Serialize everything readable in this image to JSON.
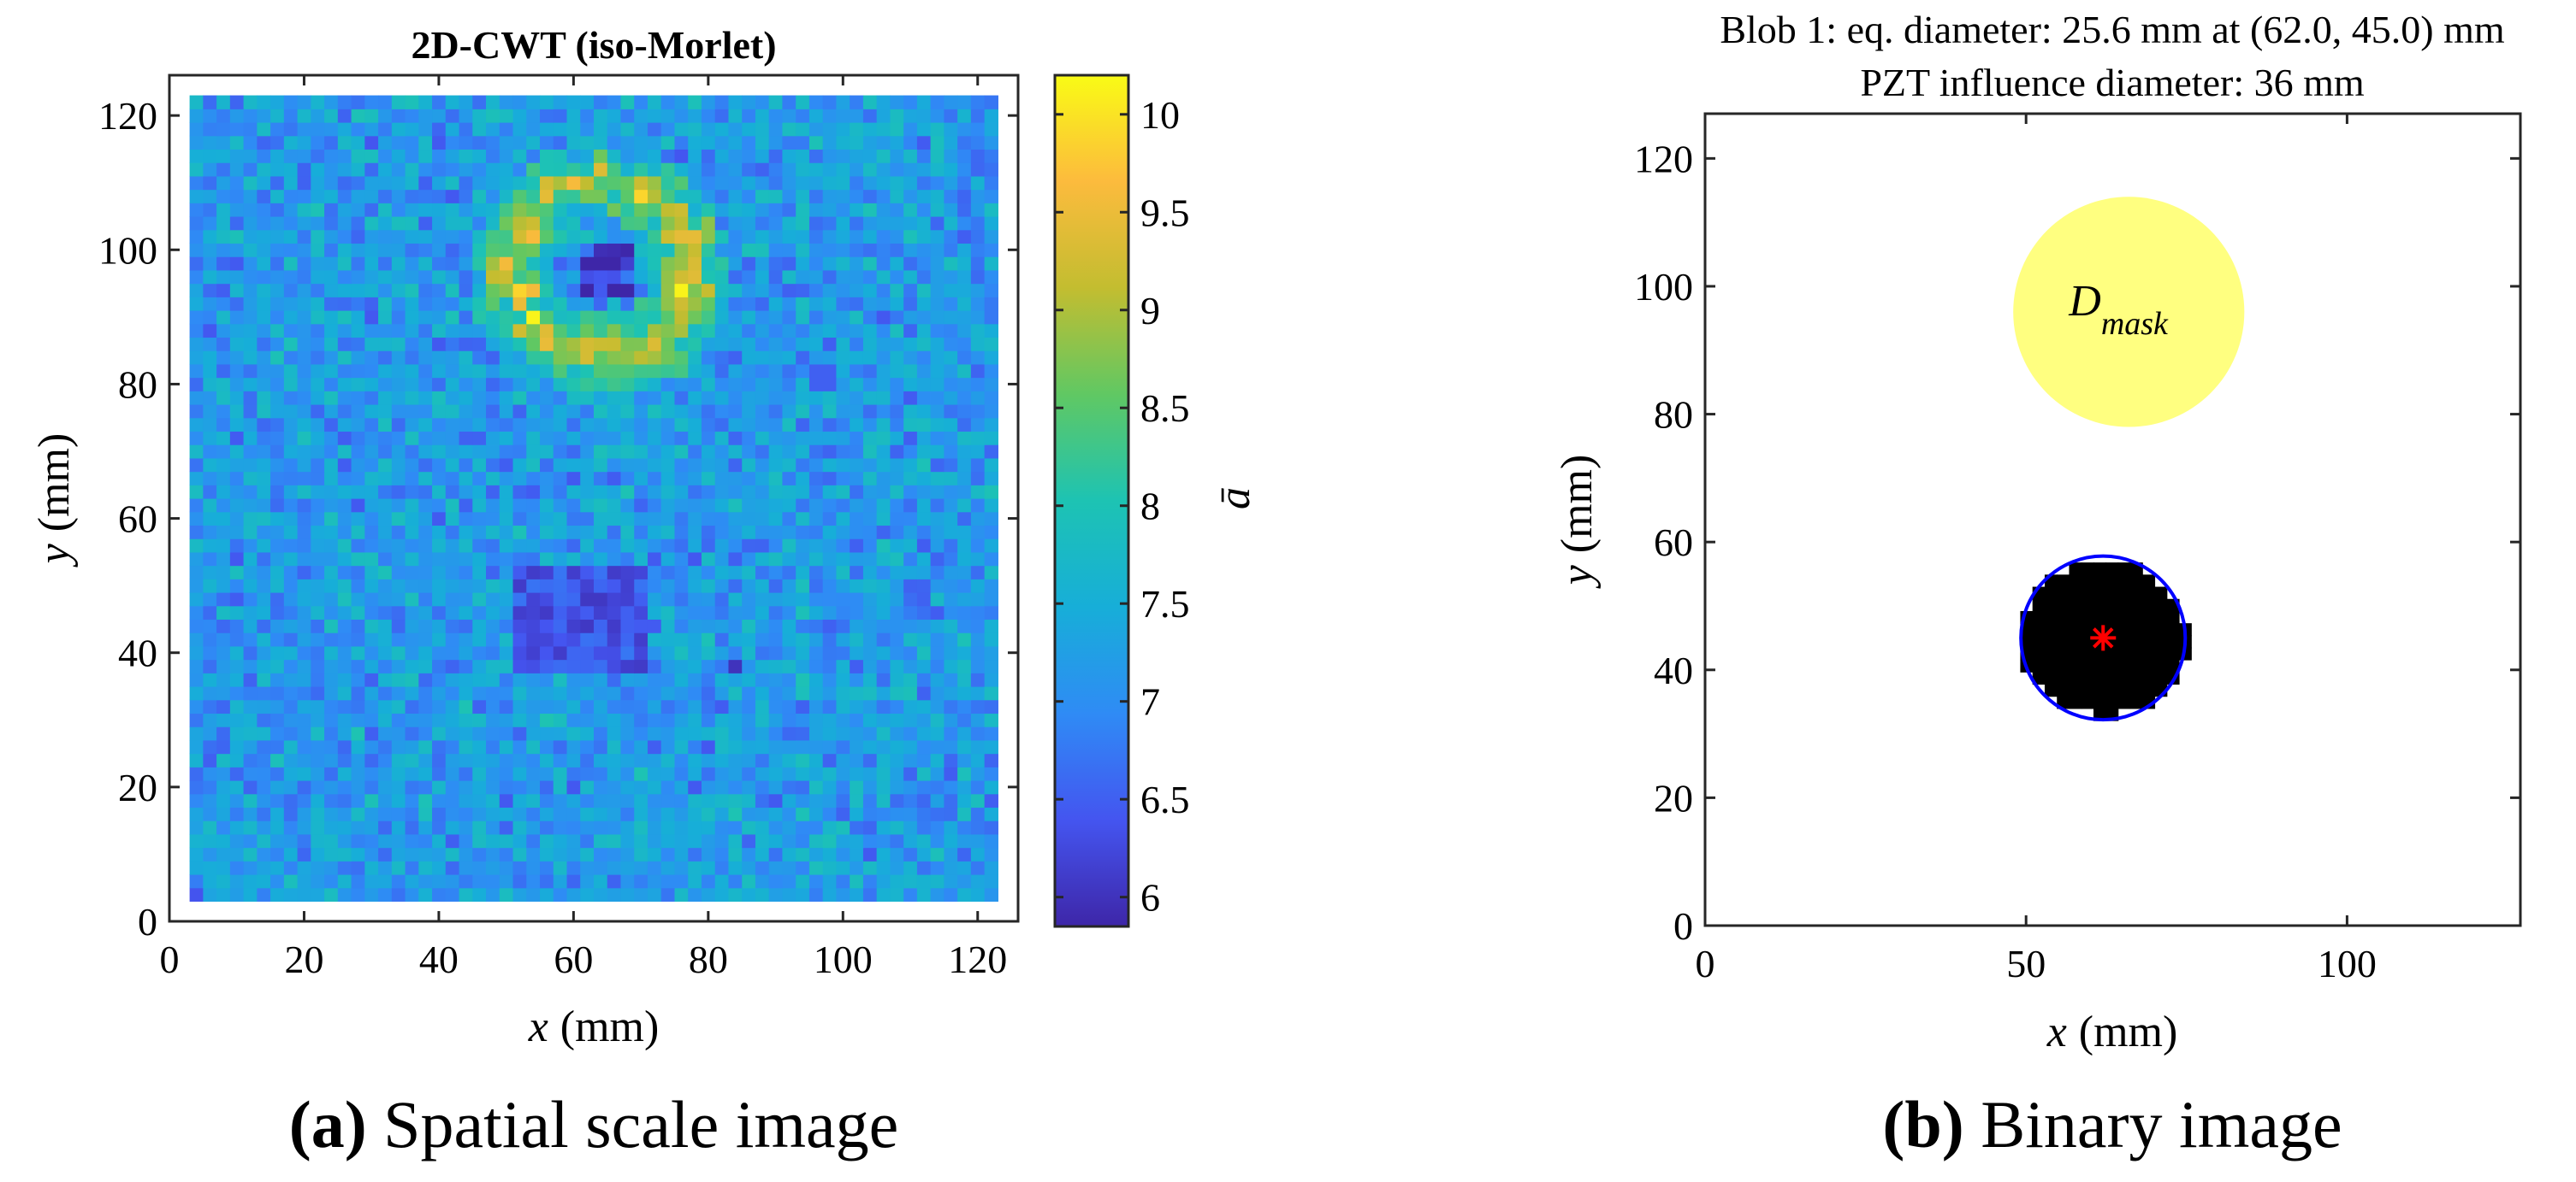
{
  "chart_data": [
    {
      "type": "heatmap",
      "title": "2D-CWT (iso-Morlet)",
      "xlabel_var": "x",
      "xlabel_unit": "(mm)",
      "ylabel_var": "y",
      "ylabel_unit": "(mm)",
      "xlim": [
        0,
        126
      ],
      "ylim": [
        0,
        126
      ],
      "xticks": [
        0,
        20,
        40,
        60,
        80,
        100,
        120
      ],
      "yticks": [
        0,
        20,
        40,
        60,
        80,
        100,
        120
      ],
      "data_extent": [
        3,
        123
      ],
      "grid_cells": 60,
      "background_level": 7.2,
      "features": [
        {
          "kind": "ring",
          "center": [
            64,
            97
          ],
          "inner_radius": 6,
          "outer_radius": 20,
          "peak": 9.6
        },
        {
          "kind": "core",
          "center": [
            65,
            97
          ],
          "radius": 5,
          "value": 6.2
        },
        {
          "kind": "square",
          "x_range": [
            51,
            72
          ],
          "y_range": [
            36,
            53
          ],
          "value": 6.4
        },
        {
          "kind": "spot",
          "center": [
            84,
            38
          ],
          "value": 6.0
        },
        {
          "kind": "spot",
          "center": [
            97,
            81
          ],
          "value": 6.5
        }
      ],
      "colorbar": {
        "label": "ā",
        "min": 5.85,
        "max": 10.2,
        "ticks": [
          6,
          6.5,
          7,
          7.5,
          8,
          8.5,
          9,
          9.5,
          10
        ],
        "colormap": [
          "#3e26a8",
          "#4455f0",
          "#2f8bf5",
          "#17aed8",
          "#1dc3b3",
          "#60c863",
          "#c3bd30",
          "#fcbb3d",
          "#f9fb15"
        ]
      },
      "caption_letter": "(a)",
      "caption_text": " Spatial scale image"
    },
    {
      "type": "binary",
      "title_line1": "Blob 1: eq. diameter: 25.6 mm at (62.0, 45.0) mm",
      "title_line2": "PZT influence diameter: 36 mm",
      "xlabel_var": "x",
      "xlabel_unit": "(mm)",
      "ylabel_var": "y",
      "ylabel_unit": "(mm)",
      "xlim": [
        0,
        127
      ],
      "ylim": [
        0,
        127
      ],
      "xticks": [
        0,
        50,
        100
      ],
      "yticks": [
        0,
        20,
        40,
        60,
        80,
        100,
        120
      ],
      "mask_circle": {
        "center": [
          66,
          96
        ],
        "diameter": 36,
        "color": "#ffff80",
        "label_main": "D",
        "label_sub": "mask"
      },
      "blob": {
        "center": [
          62,
          45
        ],
        "eq_diameter": 25.6,
        "color": "#000000"
      },
      "fit_circle": {
        "center": [
          62,
          45
        ],
        "diameter": 25.6,
        "color": "#0000ff"
      },
      "centroid_marker": {
        "symbol": "*",
        "color": "#ff0000"
      },
      "caption_letter": "(b)",
      "caption_text": " Binary image"
    }
  ]
}
